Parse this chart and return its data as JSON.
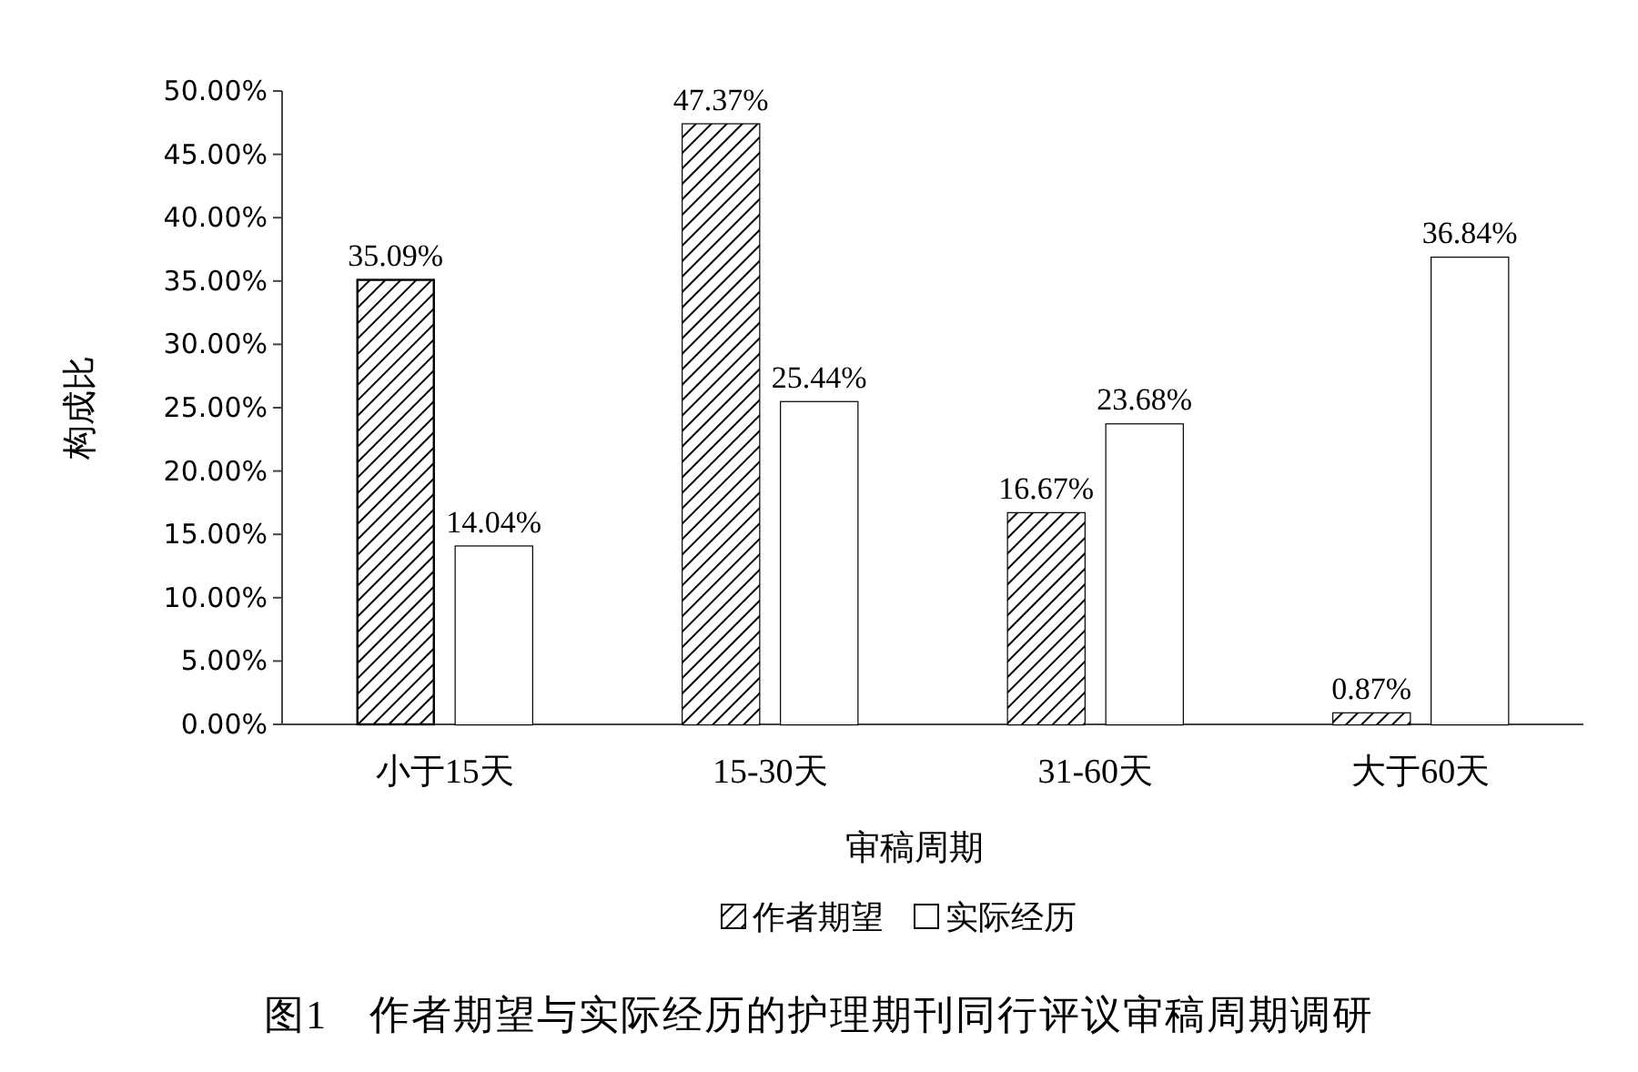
{
  "chart_data": {
    "type": "bar",
    "categories": [
      "小于15天",
      "15-30天",
      "31-60天",
      "大于60天"
    ],
    "series": [
      {
        "name": "作者期望",
        "color": "#000000",
        "values": [
          35.09,
          47.37,
          16.67,
          0.87
        ],
        "value_labels": [
          "35.09%",
          "47.37%",
          "16.67%",
          "0.87%"
        ]
      },
      {
        "name": "实际经历",
        "color": "#ffffff",
        "values": [
          14.04,
          25.44,
          23.68,
          36.84
        ],
        "value_labels": [
          "14.04%",
          "25.44%",
          "23.68%",
          "36.84%"
        ]
      }
    ],
    "ylim": [
      0,
      50
    ],
    "yticks": [
      {
        "value": 0,
        "label": "0.00%"
      },
      {
        "value": 5,
        "label": "5.00%"
      },
      {
        "value": 10,
        "label": "10.00%"
      },
      {
        "value": 15,
        "label": "15.00%"
      },
      {
        "value": 20,
        "label": "20.00%"
      },
      {
        "value": 25,
        "label": "25.00%"
      },
      {
        "value": 30,
        "label": "30.00%"
      },
      {
        "value": 35,
        "label": "35.00%"
      },
      {
        "value": 40,
        "label": "40.00%"
      },
      {
        "value": 45,
        "label": "45.00%"
      },
      {
        "value": 50,
        "label": "50.00%"
      }
    ],
    "xlabel": "审稿周期",
    "ylabel": "构成比",
    "legend": "bottom",
    "annotations": [
      "图1　作者期望与实际经历的护理期刊同行评议审稿周期调研"
    ]
  }
}
